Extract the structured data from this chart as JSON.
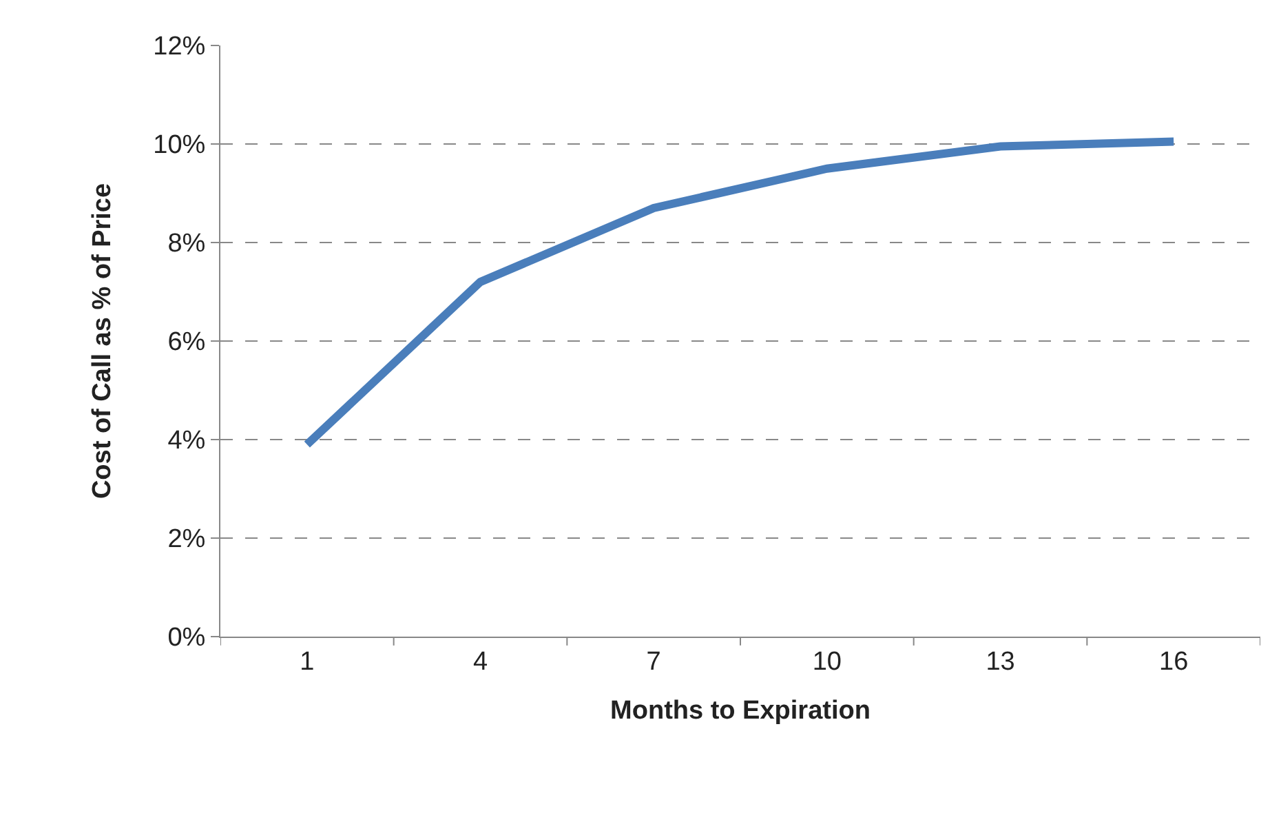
{
  "chart_data": {
    "type": "line",
    "xlabel": "Months to Expiration",
    "ylabel": "Cost of Call as % of Price",
    "categories": [
      "1",
      "4",
      "7",
      "10",
      "13",
      "16"
    ],
    "values": [
      3.9,
      7.2,
      8.7,
      9.5,
      9.95,
      10.05
    ],
    "color": "#4a7ebb",
    "ylim": [
      0,
      12
    ],
    "yticks": [
      {
        "value": 0,
        "label": "0%"
      },
      {
        "value": 2,
        "label": "2%"
      },
      {
        "value": 4,
        "label": "4%"
      },
      {
        "value": 6,
        "label": "6%"
      },
      {
        "value": 8,
        "label": "8%"
      },
      {
        "value": 10,
        "label": "10%"
      },
      {
        "value": 12,
        "label": "12%"
      }
    ],
    "grid": "y"
  }
}
